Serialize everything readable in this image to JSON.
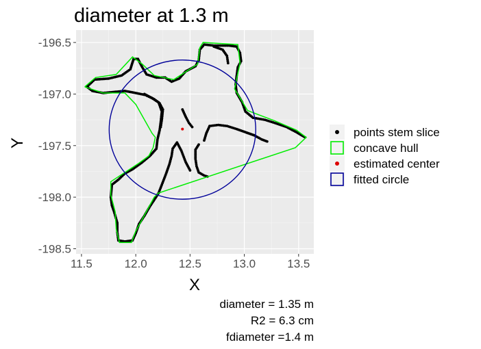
{
  "chart_data": {
    "type": "scatter",
    "title": "diameter at 1.3 m",
    "xlabel": "X",
    "ylabel": "Y",
    "xlim": [
      11.45,
      13.64
    ],
    "ylim": [
      -198.55,
      -196.38
    ],
    "x_ticks": [
      11.5,
      12.0,
      12.5,
      13.0,
      13.5
    ],
    "x_tick_labels": [
      "11.5",
      "12.0",
      "12.5",
      "13.0",
      "13.5"
    ],
    "y_ticks": [
      -196.5,
      -197.0,
      -197.5,
      -198.0,
      -198.5
    ],
    "y_tick_labels": [
      "-196.5",
      "-197.0",
      "-197.5",
      "-198.0",
      "-198.5"
    ],
    "grid": true,
    "legend_position": "right",
    "legend": [
      {
        "label": "points stem slice",
        "kind": "point",
        "color": "#000000"
      },
      {
        "label": "concave hull",
        "kind": "square",
        "color": "#00ee00"
      },
      {
        "label": "estimated center",
        "kind": "point",
        "color": "#dd0000"
      },
      {
        "label": "fitted circle",
        "kind": "square",
        "color": "#000099"
      }
    ],
    "series": [
      {
        "name": "points stem slice",
        "color": "#000000",
        "polylines": [
          [
            [
              11.55,
              -196.93
            ],
            [
              11.62,
              -196.86
            ],
            [
              11.75,
              -196.85
            ],
            [
              11.87,
              -196.82
            ],
            [
              11.95,
              -196.76
            ],
            [
              11.98,
              -196.66
            ],
            [
              12.02,
              -196.66
            ],
            [
              12.06,
              -196.74
            ],
            [
              12.1,
              -196.81
            ],
            [
              12.19,
              -196.84
            ],
            [
              12.27,
              -196.84
            ],
            [
              12.33,
              -196.88
            ],
            [
              12.4,
              -196.85
            ],
            [
              12.46,
              -196.78
            ],
            [
              12.55,
              -196.73
            ],
            [
              12.58,
              -196.67
            ],
            [
              12.59,
              -196.57
            ],
            [
              12.63,
              -196.52
            ],
            [
              12.72,
              -196.53
            ],
            [
              12.78,
              -196.53
            ],
            [
              12.86,
              -196.53
            ],
            [
              12.93,
              -196.54
            ],
            [
              12.96,
              -196.6
            ],
            [
              12.97,
              -196.68
            ],
            [
              12.94,
              -196.74
            ],
            [
              12.93,
              -196.82
            ],
            [
              12.92,
              -196.91
            ],
            [
              12.93,
              -196.99
            ],
            [
              12.98,
              -197.08
            ],
            [
              13.01,
              -197.17
            ],
            [
              13.08,
              -197.23
            ],
            [
              13.19,
              -197.25
            ],
            [
              13.28,
              -197.28
            ],
            [
              13.39,
              -197.32
            ],
            [
              13.48,
              -197.37
            ],
            [
              13.56,
              -197.42
            ]
          ],
          [
            [
              11.55,
              -196.93
            ],
            [
              11.6,
              -196.97
            ],
            [
              11.7,
              -196.99
            ],
            [
              11.8,
              -196.98
            ],
            [
              11.9,
              -196.97
            ],
            [
              12.0,
              -196.99
            ],
            [
              12.09,
              -197.01
            ],
            [
              12.15,
              -197.04
            ],
            [
              12.21,
              -197.08
            ],
            [
              12.24,
              -197.17
            ],
            [
              12.23,
              -197.27
            ],
            [
              12.22,
              -197.35
            ],
            [
              12.2,
              -197.44
            ],
            [
              12.19,
              -197.53
            ],
            [
              12.13,
              -197.6
            ],
            [
              12.05,
              -197.67
            ],
            [
              11.97,
              -197.73
            ],
            [
              11.9,
              -197.77
            ],
            [
              11.84,
              -197.83
            ],
            [
              11.78,
              -197.88
            ],
            [
              11.77,
              -198.0
            ],
            [
              11.78,
              -198.08
            ],
            [
              11.8,
              -198.14
            ],
            [
              11.83,
              -198.25
            ],
            [
              11.83,
              -198.34
            ],
            [
              11.84,
              -198.42
            ],
            [
              11.9,
              -198.43
            ],
            [
              11.97,
              -198.42
            ],
            [
              12.0,
              -198.35
            ],
            [
              12.03,
              -198.26
            ],
            [
              12.08,
              -198.18
            ],
            [
              12.13,
              -198.09
            ],
            [
              12.18,
              -198.01
            ],
            [
              12.21,
              -197.96
            ],
            [
              12.24,
              -197.88
            ],
            [
              12.28,
              -197.77
            ],
            [
              12.31,
              -197.68
            ],
            [
              12.33,
              -197.6
            ],
            [
              12.34,
              -197.53
            ],
            [
              12.38,
              -197.47
            ],
            [
              12.42,
              -197.55
            ],
            [
              12.46,
              -197.66
            ],
            [
              12.5,
              -197.74
            ]
          ],
          [
            [
              12.08,
              -197.0
            ],
            [
              12.17,
              -197.05
            ],
            [
              12.22,
              -197.09
            ],
            [
              12.25,
              -197.15
            ],
            [
              12.24,
              -197.25
            ],
            [
              12.23,
              -197.32
            ]
          ],
          [
            [
              12.72,
              -196.54
            ],
            [
              12.8,
              -196.57
            ],
            [
              12.84,
              -196.63
            ],
            [
              12.85,
              -196.7
            ]
          ],
          [
            [
              12.58,
              -197.49
            ],
            [
              12.55,
              -197.54
            ],
            [
              12.55,
              -197.63
            ],
            [
              12.56,
              -197.7
            ],
            [
              12.58,
              -197.76
            ],
            [
              12.63,
              -197.79
            ],
            [
              12.66,
              -197.8
            ]
          ],
          [
            [
              12.63,
              -197.45
            ],
            [
              12.65,
              -197.38
            ],
            [
              12.68,
              -197.31
            ],
            [
              12.76,
              -197.3
            ],
            [
              12.84,
              -197.31
            ],
            [
              12.93,
              -197.34
            ],
            [
              13.01,
              -197.37
            ],
            [
              13.09,
              -197.4
            ],
            [
              13.16,
              -197.44
            ],
            [
              13.21,
              -197.46
            ]
          ],
          [
            [
              12.43,
              -197.15
            ],
            [
              12.46,
              -197.22
            ],
            [
              12.49,
              -197.28
            ],
            [
              12.52,
              -197.32
            ]
          ]
        ]
      },
      {
        "name": "concave hull",
        "color": "#00ee00",
        "polyline": [
          [
            11.53,
            -196.93
          ],
          [
            11.63,
            -196.84
          ],
          [
            11.82,
            -196.81
          ],
          [
            11.97,
            -196.64
          ],
          [
            12.06,
            -196.71
          ],
          [
            12.17,
            -196.82
          ],
          [
            12.35,
            -196.86
          ],
          [
            12.57,
            -196.71
          ],
          [
            12.59,
            -196.55
          ],
          [
            12.62,
            -196.5
          ],
          [
            12.94,
            -196.52
          ],
          [
            12.96,
            -196.7
          ],
          [
            12.91,
            -196.95
          ],
          [
            13.03,
            -197.16
          ],
          [
            13.28,
            -197.26
          ],
          [
            13.48,
            -197.35
          ],
          [
            13.57,
            -197.42
          ],
          [
            13.47,
            -197.52
          ],
          [
            12.21,
            -197.96
          ],
          [
            12.17,
            -198.0
          ],
          [
            12.0,
            -198.33
          ],
          [
            11.96,
            -198.44
          ],
          [
            11.85,
            -198.44
          ],
          [
            11.82,
            -198.31
          ],
          [
            11.81,
            -198.14
          ],
          [
            11.77,
            -197.98
          ],
          [
            11.77,
            -197.85
          ],
          [
            11.9,
            -197.76
          ],
          [
            12.03,
            -197.67
          ],
          [
            12.12,
            -197.6
          ],
          [
            12.16,
            -197.52
          ],
          [
            12.18,
            -197.42
          ],
          [
            12.15,
            -197.38
          ],
          [
            12.0,
            -197.1
          ],
          [
            11.9,
            -196.99
          ],
          [
            11.7,
            -196.99
          ],
          [
            11.53,
            -196.93
          ]
        ]
      },
      {
        "name": "estimated center",
        "color": "#dd0000",
        "points": [
          [
            12.43,
            -197.34
          ]
        ]
      },
      {
        "name": "fitted circle",
        "color": "#000099",
        "center": [
          12.43,
          -197.345
        ],
        "radius": 0.675
      }
    ]
  },
  "caption_lines": [
    "diameter = 1.35 m",
    "R2 = 6.3 cm",
    "fdiameter =1.4 m"
  ]
}
